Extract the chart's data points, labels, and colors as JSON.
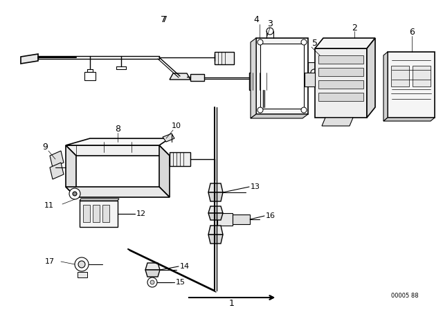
{
  "bg_color": "#ffffff",
  "fig_width": 6.4,
  "fig_height": 4.48,
  "dpi": 100,
  "line_color": "#000000",
  "part_number_text": "00005 88",
  "gray": "#888888",
  "light_gray": "#cccccc"
}
